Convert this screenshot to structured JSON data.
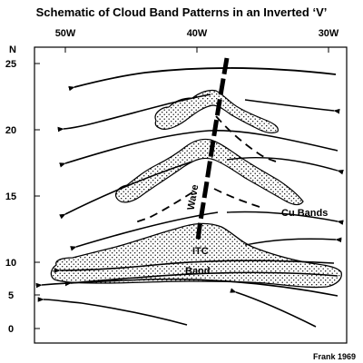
{
  "title": "Schematic of Cloud Band Patterns in an Inverted ‘V’",
  "axes": {
    "x_ticks": [
      "50W",
      "40W",
      "30W"
    ],
    "y_label": "N",
    "y_ticks": [
      "25",
      "20",
      "15",
      "10",
      "5",
      "0"
    ]
  },
  "annotations": {
    "wave": "Wave",
    "cu_bands": "Cu Bands",
    "itc": "ITC",
    "band": "Band"
  },
  "credit": "Frank 1969",
  "colors": {
    "ink": "#000000",
    "cloud_fill": "#ffffff",
    "stipple": "#000000"
  }
}
